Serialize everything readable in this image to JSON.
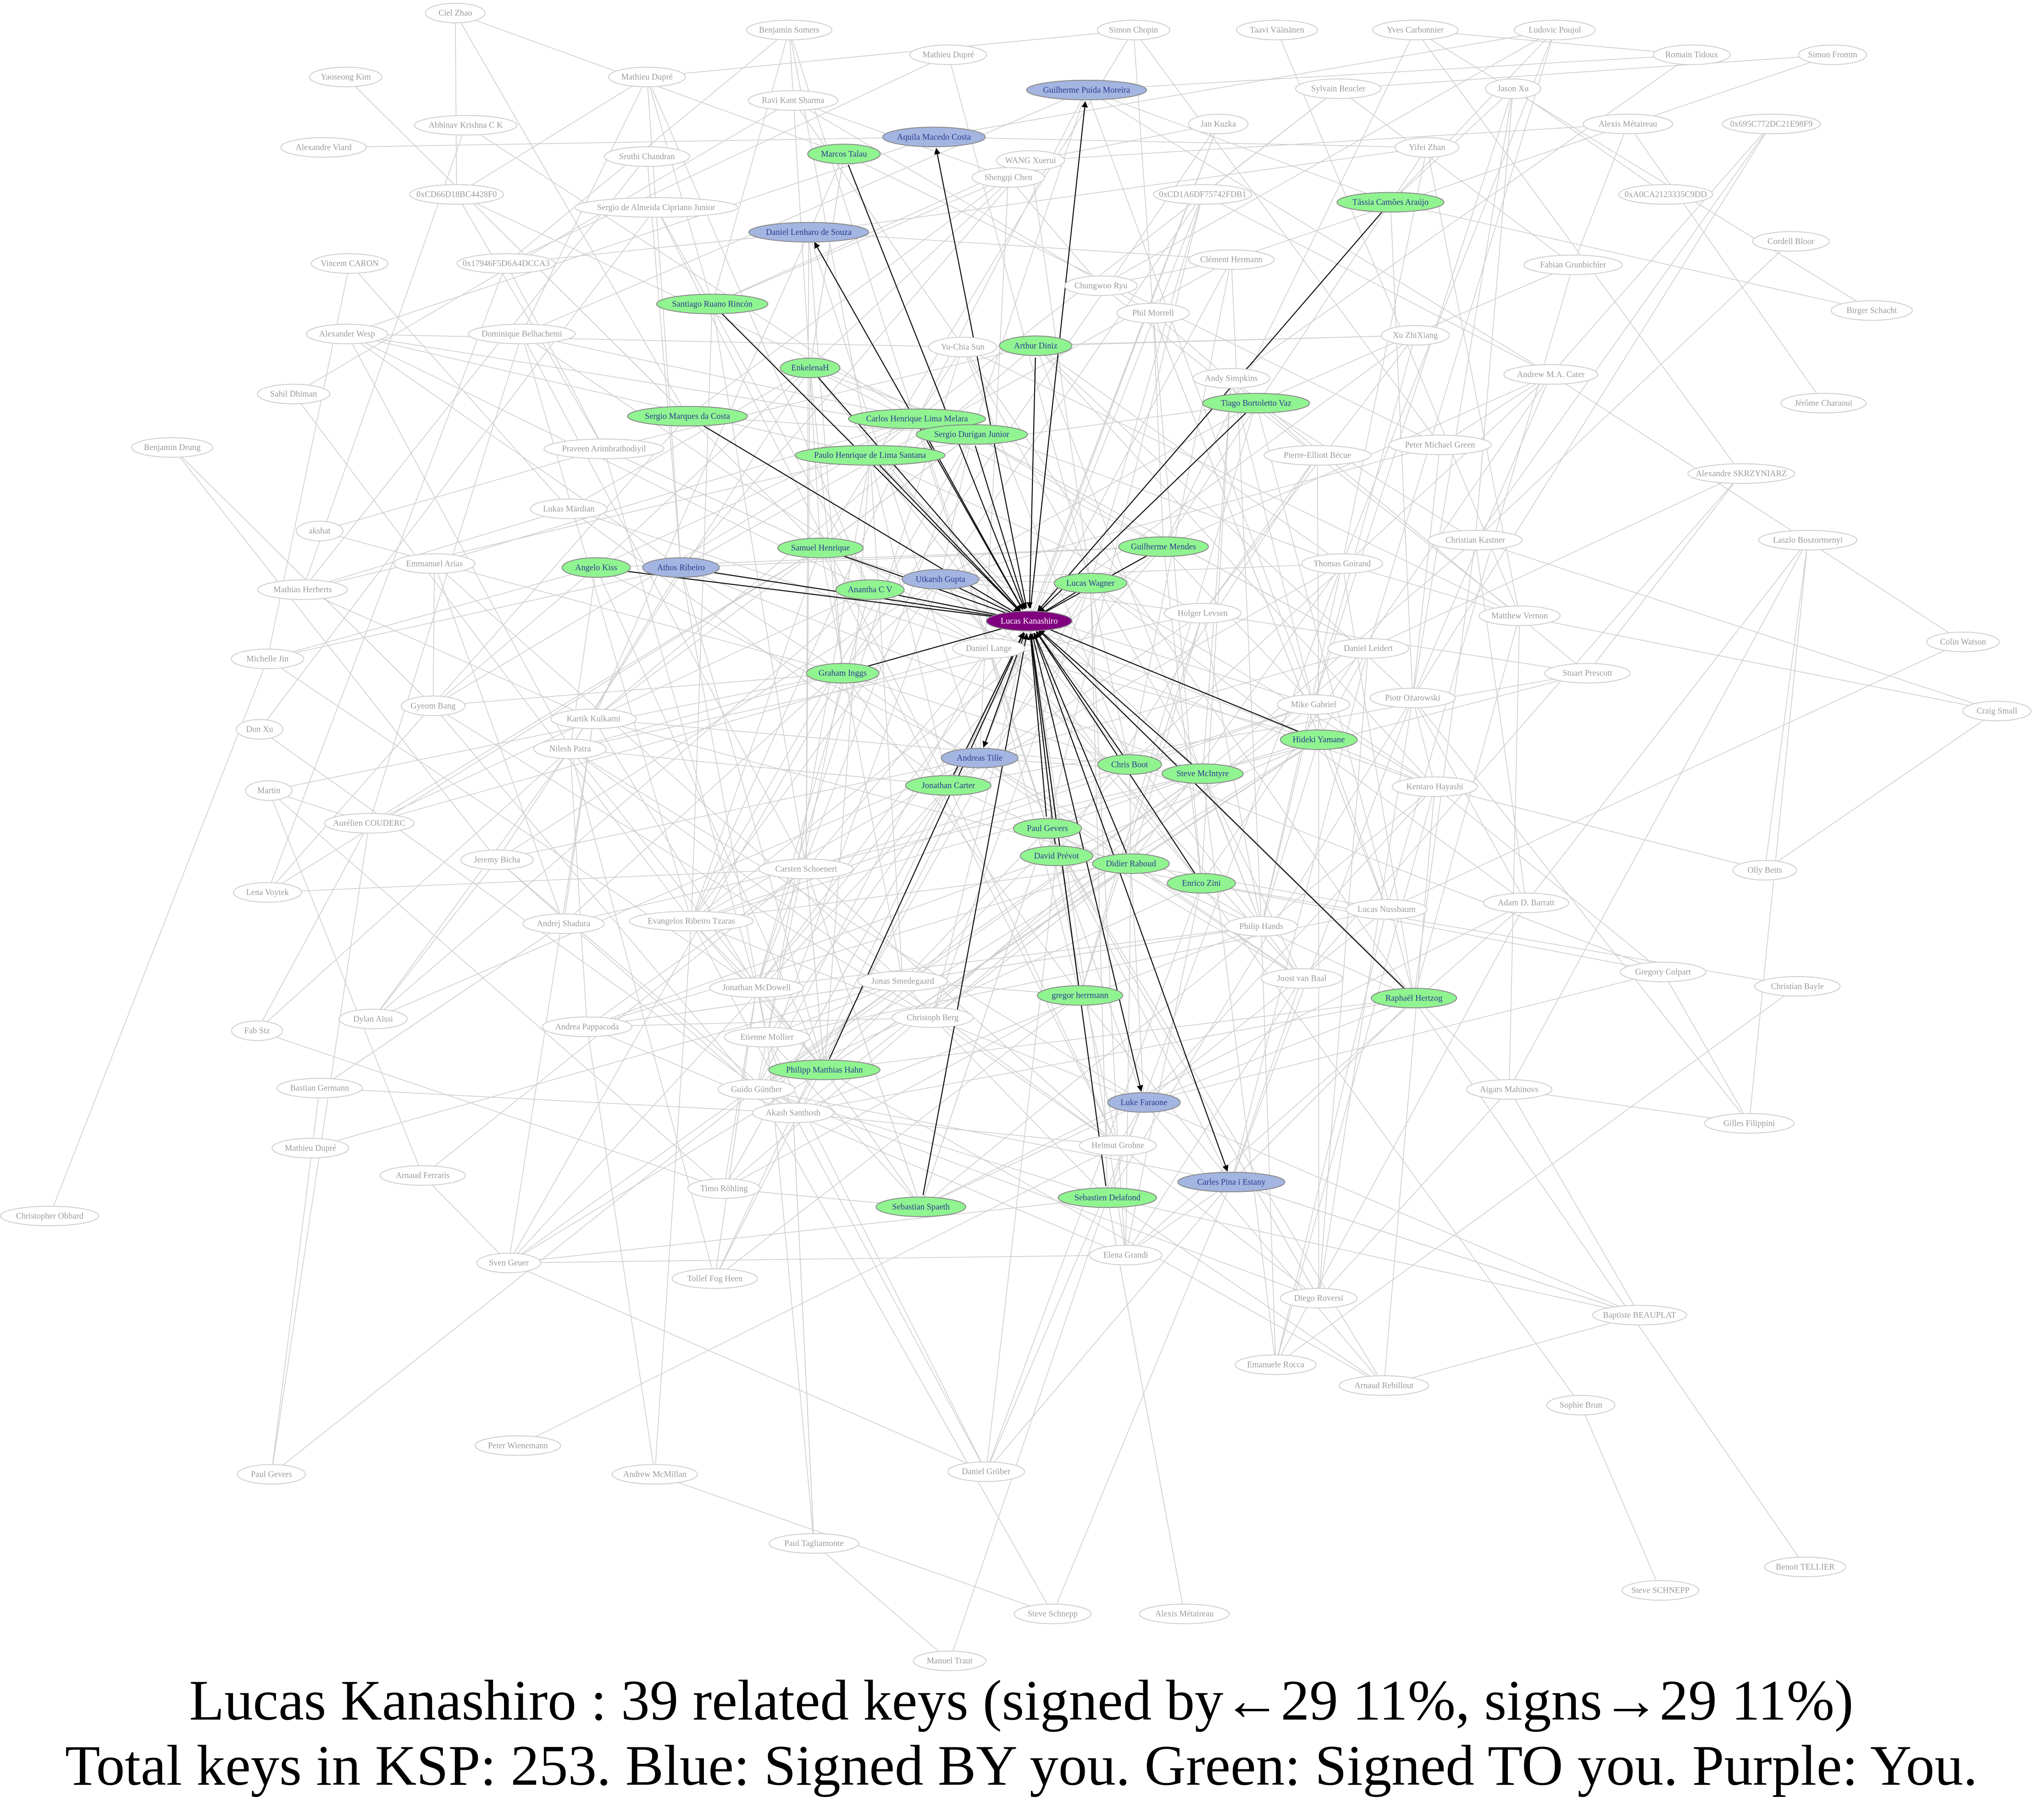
{
  "colors": {
    "you": "#800080",
    "signed_by_you": "#a3b5e0",
    "signed_to_you": "#90f590",
    "other": "#ffffff"
  },
  "nodes": [
    {
      "label": "Lucas Kanashiro",
      "group": "you"
    },
    {
      "label": "Guilherme Puida Moreira",
      "group": "signed_by_you"
    },
    {
      "label": "Aquila Macedo Costa",
      "group": "signed_by_you"
    },
    {
      "label": "Daniel Lenharo de Souza",
      "group": "signed_by_you"
    },
    {
      "label": "Athos Ribeiro",
      "group": "signed_by_you"
    },
    {
      "label": "Utkarsh Gupta",
      "group": "signed_by_you"
    },
    {
      "label": "Andreas Tille",
      "group": "signed_by_you"
    },
    {
      "label": "Luke Faraone",
      "group": "signed_by_you"
    },
    {
      "label": "Carles Pina i Estany",
      "group": "signed_by_you"
    },
    {
      "label": "Marcos Talau",
      "group": "signed_to_you"
    },
    {
      "label": "Tássia Camões Araújo",
      "group": "signed_to_you"
    },
    {
      "label": "Santiago Ruano Rincón",
      "group": "signed_to_you"
    },
    {
      "label": "Arthur Diniz",
      "group": "signed_to_you"
    },
    {
      "label": "EnkelenaH",
      "group": "signed_to_you"
    },
    {
      "label": "Tiago Bortoletto Vaz",
      "group": "signed_to_you"
    },
    {
      "label": "Sergio Marques da Costa",
      "group": "signed_to_you"
    },
    {
      "label": "Carlos Henrique Lima Melara",
      "group": "signed_to_you"
    },
    {
      "label": "Sergio Durigan Junior",
      "group": "signed_to_you"
    },
    {
      "label": "Paulo Henrique de Lima Santana",
      "group": "signed_to_you"
    },
    {
      "label": "Samuel Henrique",
      "group": "signed_to_you"
    },
    {
      "label": "Guilherme Mendes",
      "group": "signed_to_you"
    },
    {
      "label": "Angelo Kiss",
      "group": "signed_to_you"
    },
    {
      "label": "Lucas Wagner",
      "group": "signed_to_you"
    },
    {
      "label": "Anantha C V",
      "group": "signed_to_you"
    },
    {
      "label": "Graham Inggs",
      "group": "signed_to_you"
    },
    {
      "label": "Hideki Yamane",
      "group": "signed_to_you"
    },
    {
      "label": "Chris Boot",
      "group": "signed_to_you"
    },
    {
      "label": "Steve McIntyre",
      "group": "signed_to_you"
    },
    {
      "label": "Jonathan Carter",
      "group": "signed_to_you"
    },
    {
      "label": "Paul Gevers",
      "group": "signed_to_you"
    },
    {
      "label": "David Prévot",
      "group": "signed_to_you"
    },
    {
      "label": "Didier Raboud",
      "group": "signed_to_you"
    },
    {
      "label": "Enrico Zini",
      "group": "signed_to_you"
    },
    {
      "label": "gregor herrmann",
      "group": "signed_to_you"
    },
    {
      "label": "Raphaël Hertzog",
      "group": "signed_to_you"
    },
    {
      "label": "Philipp Matthias Hahn",
      "group": "signed_to_you"
    },
    {
      "label": "Sebastian Spaeth",
      "group": "signed_to_you"
    },
    {
      "label": "Sebastien Delafond",
      "group": "signed_to_you"
    },
    {
      "label": "Ciel Zhao",
      "group": "other"
    },
    {
      "label": "Benjamin Somers",
      "group": "other"
    },
    {
      "label": "Simon Chopin",
      "group": "other"
    },
    {
      "label": "Taavi Väänänen",
      "group": "other"
    },
    {
      "label": "Yves Carbonnier",
      "group": "other"
    },
    {
      "label": "Ludovic Poujol",
      "group": "other"
    },
    {
      "label": "Mathieu Dupré",
      "group": "other"
    },
    {
      "label": "Romain Tidoux",
      "group": "other"
    },
    {
      "label": "Simon Fromm",
      "group": "other"
    },
    {
      "label": "Yaoseong Kim",
      "group": "other"
    },
    {
      "label": "Mathieu Dupré",
      "group": "other"
    },
    {
      "label": "Sylvain Beucler",
      "group": "other"
    },
    {
      "label": "Jason Xu",
      "group": "other"
    },
    {
      "label": "Ravi Kant Sharma",
      "group": "other"
    },
    {
      "label": "Abhinav Krishna C K",
      "group": "other"
    },
    {
      "label": "Jan Kuzka",
      "group": "other"
    },
    {
      "label": "Alexis Métaireau",
      "group": "other"
    },
    {
      "label": "0x695C772DC21E98F9",
      "group": "other"
    },
    {
      "label": "Alexandre Viard",
      "group": "other"
    },
    {
      "label": "Yifei Zhan",
      "group": "other"
    },
    {
      "label": "Sruthi Chandran",
      "group": "other"
    },
    {
      "label": "WANG Xuerui",
      "group": "other"
    },
    {
      "label": "Shengqi Chen",
      "group": "other"
    },
    {
      "label": "0xCD66D18BC4428F0",
      "group": "other"
    },
    {
      "label": "0xCD1A6DF75742FDB1",
      "group": "other"
    },
    {
      "label": "0xA0CA2123335C9DD",
      "group": "other"
    },
    {
      "label": "Sergio de Almeida Cipriano Junior",
      "group": "other"
    },
    {
      "label": "Cordell Bloor",
      "group": "other"
    },
    {
      "label": "Vincent CARON",
      "group": "other"
    },
    {
      "label": "0x17946F5D6A4DCCA3",
      "group": "other"
    },
    {
      "label": "Clément Hermann",
      "group": "other"
    },
    {
      "label": "Fabian Grunbichler",
      "group": "other"
    },
    {
      "label": "Chungwoo Ryu",
      "group": "other"
    },
    {
      "label": "Birger Schacht",
      "group": "other"
    },
    {
      "label": "Phil Morrell",
      "group": "other"
    },
    {
      "label": "Alexander Wesp",
      "group": "other"
    },
    {
      "label": "Dominique Belhachemi",
      "group": "other"
    },
    {
      "label": "Yu-Chia Sun",
      "group": "other"
    },
    {
      "label": "Xu ZhiXiang",
      "group": "other"
    },
    {
      "label": "Andrew M.A. Cater",
      "group": "other"
    },
    {
      "label": "Andy Simpkins",
      "group": "other"
    },
    {
      "label": "Jérôme Charaoui",
      "group": "other"
    },
    {
      "label": "Sahil Dhiman",
      "group": "other"
    },
    {
      "label": "Benjamin Drung",
      "group": "other"
    },
    {
      "label": "Praveen Arimbrathodiyil",
      "group": "other"
    },
    {
      "label": "Pierre-Elliott Bécue",
      "group": "other"
    },
    {
      "label": "Peter Michael Green",
      "group": "other"
    },
    {
      "label": "Alexandre SKRZYNIARZ",
      "group": "other"
    },
    {
      "label": "Lukas Märdian",
      "group": "other"
    },
    {
      "label": "akshat",
      "group": "other"
    },
    {
      "label": "Emmanuel Arias",
      "group": "other"
    },
    {
      "label": "Christian Kastner",
      "group": "other"
    },
    {
      "label": "Laszlo Boszormenyi",
      "group": "other"
    },
    {
      "label": "Mathias Herberts",
      "group": "other"
    },
    {
      "label": "Thomas Goirand",
      "group": "other"
    },
    {
      "label": "Matthew Vernon",
      "group": "other"
    },
    {
      "label": "Colin Watson",
      "group": "other"
    },
    {
      "label": "Daniel Leidert",
      "group": "other"
    },
    {
      "label": "Michelle Jin",
      "group": "other"
    },
    {
      "label": "Stuart Prescott",
      "group": "other"
    },
    {
      "label": "Gyeom Bang",
      "group": "other"
    },
    {
      "label": "Don Xu",
      "group": "other"
    },
    {
      "label": "Craig Small",
      "group": "other"
    },
    {
      "label": "Kartik Kulkarni",
      "group": "other"
    },
    {
      "label": "Nilesh Patra",
      "group": "other"
    },
    {
      "label": "Martin",
      "group": "other"
    },
    {
      "label": "Jeremy Bicha",
      "group": "other"
    },
    {
      "label": "Aurélien COUDERC",
      "group": "other"
    },
    {
      "label": "Olly Betts",
      "group": "other"
    },
    {
      "label": "Lena Voytek",
      "group": "other"
    },
    {
      "label": "Andrej Shadura",
      "group": "other"
    },
    {
      "label": "Evangelos Ribeiro Tzaras",
      "group": "other"
    },
    {
      "label": "Gregory Colpart",
      "group": "other"
    },
    {
      "label": "Christian Bayle",
      "group": "other"
    },
    {
      "label": "Dylan Aïssi",
      "group": "other"
    },
    {
      "label": "Andrea Pappacoda",
      "group": "other"
    },
    {
      "label": "Fab Stz",
      "group": "other"
    },
    {
      "label": "Bastian Germann",
      "group": "other"
    },
    {
      "label": "Aigars Mahinovs",
      "group": "other"
    },
    {
      "label": "Gilles Filippini",
      "group": "other"
    },
    {
      "label": "Mathieu Dupré",
      "group": "other"
    },
    {
      "label": "Arnaud Ferraris",
      "group": "other"
    },
    {
      "label": "Christopher Obbard",
      "group": "other"
    },
    {
      "label": "Timo Röhling",
      "group": "other"
    },
    {
      "label": "Sven Geuer",
      "group": "other"
    },
    {
      "label": "Tollef Fog Heen",
      "group": "other"
    },
    {
      "label": "Elena Grandi",
      "group": "other"
    },
    {
      "label": "Diego Roversi",
      "group": "other"
    },
    {
      "label": "Baptiste BEAUPLAT",
      "group": "other"
    },
    {
      "label": "Emanuele Rocca",
      "group": "other"
    },
    {
      "label": "Arnaud Rebillout",
      "group": "other"
    },
    {
      "label": "Sophie Brun",
      "group": "other"
    },
    {
      "label": "Peter Wienemann",
      "group": "other"
    },
    {
      "label": "Paul Gevers",
      "group": "other"
    },
    {
      "label": "Andrew McMillan",
      "group": "other"
    },
    {
      "label": "Daniel Gröber",
      "group": "other"
    },
    {
      "label": "Paul Tagliamonte",
      "group": "other"
    },
    {
      "label": "Steve Schnepp",
      "group": "other"
    },
    {
      "label": "Alexis Métaireau",
      "group": "other"
    },
    {
      "label": "Manuel Traut",
      "group": "other"
    },
    {
      "label": "Benoit TELLIER",
      "group": "other"
    },
    {
      "label": "Steve SCHNEPP",
      "group": "other"
    },
    {
      "label": "Jonathan McDowell",
      "group": "other"
    },
    {
      "label": "Etienne Mollier",
      "group": "other"
    },
    {
      "label": "Guido Günther",
      "group": "other"
    },
    {
      "label": "Akash Santhosh",
      "group": "other"
    },
    {
      "label": "Carsten Schoenert",
      "group": "other"
    },
    {
      "label": "Jonas Smedegaard",
      "group": "other"
    },
    {
      "label": "Lucas Nussbaum",
      "group": "other"
    },
    {
      "label": "Adam D. Barratt",
      "group": "other"
    },
    {
      "label": "Philip Hands",
      "group": "other"
    },
    {
      "label": "Kentaro Hayashi",
      "group": "other"
    },
    {
      "label": "Piotr Ożarowski",
      "group": "other"
    },
    {
      "label": "Mike Gabriel",
      "group": "other"
    },
    {
      "label": "Helmut Grohne",
      "group": "other"
    },
    {
      "label": "Christoph Berg",
      "group": "other"
    },
    {
      "label": "Holger Levsen",
      "group": "other"
    },
    {
      "label": "Daniel Lange",
      "group": "other"
    },
    {
      "label": "Joost van Baal",
      "group": "other"
    }
  ],
  "caption": {
    "line1": "Lucas Kanashiro : 39 related keys (signed by←29 11%, signs→29 11%)",
    "line2": "Total keys in KSP: 253. Blue: Signed BY you. Green: Signed TO you. Purple: You."
  }
}
